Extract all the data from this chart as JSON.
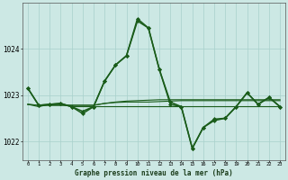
{
  "background_color": "#cce8e4",
  "grid_color": "#a8d0cb",
  "line_color": "#1a5c1a",
  "title": "Graphe pression niveau de la mer (hPa)",
  "ylabel_ticks": [
    1022,
    1023,
    1024
  ],
  "xlim": [
    -0.5,
    23.5
  ],
  "ylim": [
    1021.6,
    1025.0
  ],
  "series": [
    {
      "x": [
        0,
        1,
        2,
        3,
        4,
        5,
        6,
        7,
        8,
        9,
        10,
        11,
        12,
        13,
        14,
        15,
        16,
        17,
        18,
        19,
        20,
        21,
        22,
        23
      ],
      "y": [
        1022.8,
        1022.75,
        1022.8,
        1022.8,
        1022.75,
        1022.75,
        1022.75,
        1022.75,
        1022.75,
        1022.75,
        1022.75,
        1022.75,
        1022.75,
        1022.75,
        1022.75,
        1022.75,
        1022.75,
        1022.75,
        1022.75,
        1022.75,
        1022.75,
        1022.75,
        1022.75,
        1022.75
      ],
      "marker": null,
      "linewidth": 0.8
    },
    {
      "x": [
        0,
        1,
        2,
        3,
        4,
        5,
        6,
        7,
        8,
        9,
        10,
        11,
        12,
        13,
        14,
        15,
        16,
        17,
        18,
        19,
        20,
        21,
        22,
        23
      ],
      "y": [
        1022.8,
        1022.78,
        1022.78,
        1022.78,
        1022.78,
        1022.78,
        1022.78,
        1022.82,
        1022.84,
        1022.85,
        1022.85,
        1022.85,
        1022.86,
        1022.87,
        1022.88,
        1022.88,
        1022.88,
        1022.88,
        1022.88,
        1022.88,
        1022.88,
        1022.88,
        1022.88,
        1022.88
      ],
      "marker": null,
      "linewidth": 0.8
    },
    {
      "x": [
        0,
        1,
        2,
        3,
        4,
        5,
        6,
        7,
        8,
        9,
        10,
        11,
        12,
        13,
        14,
        15,
        16,
        17,
        18,
        19,
        20,
        21,
        22,
        23
      ],
      "y": [
        1022.8,
        1022.78,
        1022.78,
        1022.78,
        1022.78,
        1022.78,
        1022.78,
        1022.82,
        1022.85,
        1022.87,
        1022.88,
        1022.89,
        1022.9,
        1022.9,
        1022.9,
        1022.9,
        1022.9,
        1022.9,
        1022.9,
        1022.9,
        1022.9,
        1022.9,
        1022.9,
        1022.9
      ],
      "marker": null,
      "linewidth": 0.8
    },
    {
      "x": [
        0,
        1,
        2,
        3,
        4,
        5,
        6,
        7,
        8,
        9,
        10,
        11,
        12,
        13,
        14,
        15,
        16,
        17,
        18,
        19,
        20,
        21,
        22,
        23
      ],
      "y": [
        1023.15,
        1022.78,
        1022.8,
        1022.82,
        1022.75,
        1022.6,
        1022.75,
        1023.3,
        1023.65,
        1023.85,
        1024.65,
        1024.45,
        1023.55,
        1022.8,
        1022.75,
        1021.85,
        1022.3,
        1022.45,
        1022.5,
        1022.75,
        1023.05,
        1022.8,
        1022.95,
        1022.75
      ],
      "marker": "D",
      "markersize": 2.0,
      "linewidth": 1.1
    },
    {
      "x": [
        0,
        1,
        2,
        3,
        4,
        5,
        6,
        7,
        8,
        9,
        10,
        11,
        12,
        13,
        14,
        15,
        16,
        17,
        18,
        19,
        20,
        21,
        22,
        23
      ],
      "y": [
        1023.15,
        1022.78,
        1022.8,
        1022.82,
        1022.75,
        1022.65,
        1022.75,
        1023.3,
        1023.65,
        1023.85,
        1024.6,
        1024.45,
        1023.55,
        1022.85,
        1022.75,
        1021.85,
        1022.3,
        1022.48,
        1022.5,
        1022.75,
        1023.05,
        1022.8,
        1022.95,
        1022.75
      ],
      "marker": "D",
      "markersize": 2.0,
      "linewidth": 1.1
    }
  ]
}
